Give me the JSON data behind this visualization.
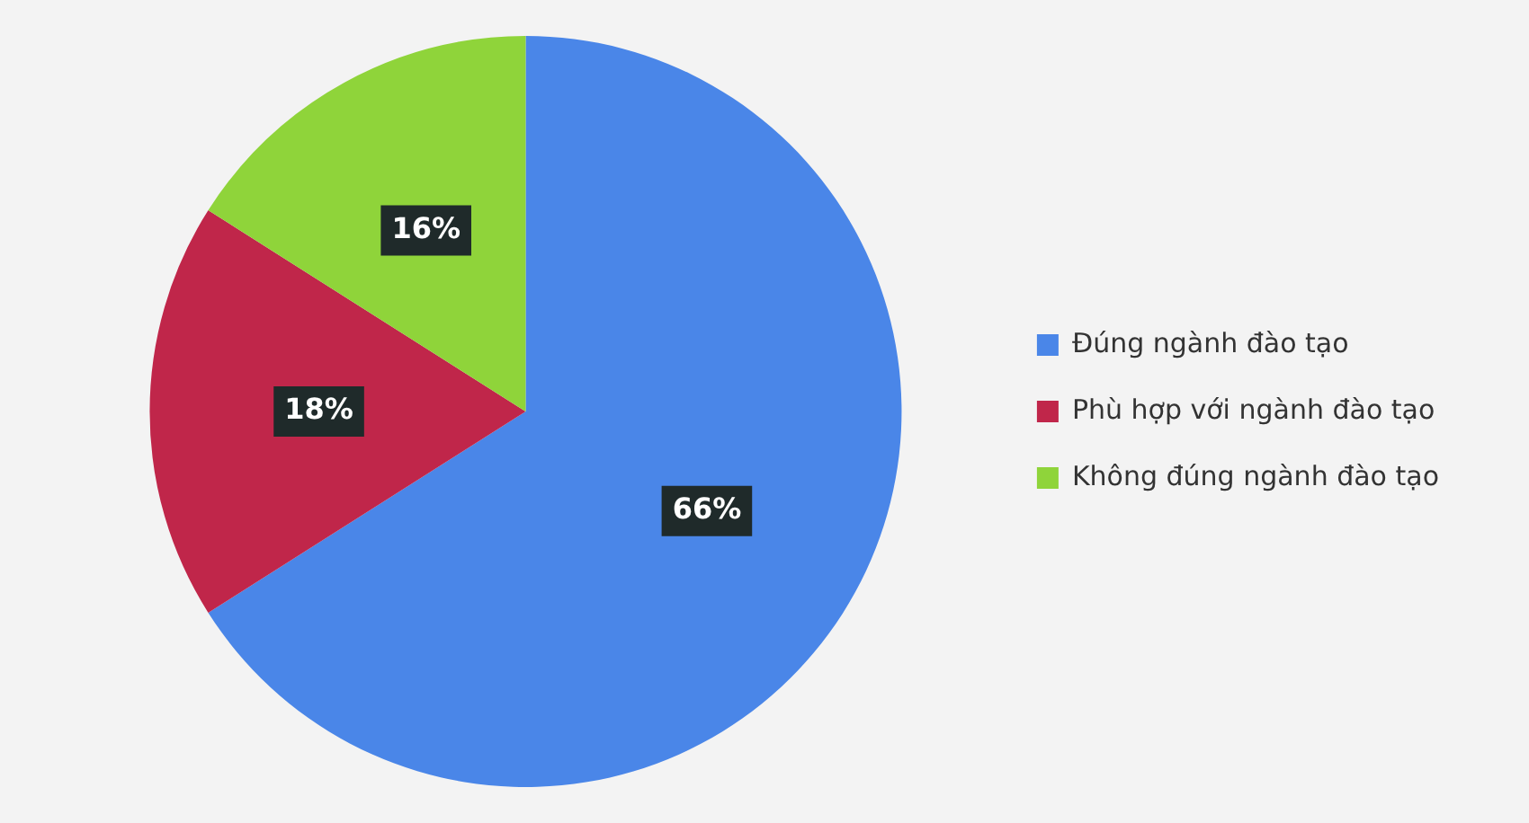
{
  "chart_data": {
    "type": "pie",
    "categories": [
      "Đúng ngành đào tạo",
      "Phù hợp với ngành đào tạo",
      "Không đúng ngành đào tạo"
    ],
    "values": [
      66,
      18,
      16
    ],
    "colors": [
      "#4a86e8",
      "#c0264a",
      "#8fd43a"
    ],
    "value_labels": [
      "66%",
      "18%",
      "16%"
    ],
    "legend": "right"
  }
}
